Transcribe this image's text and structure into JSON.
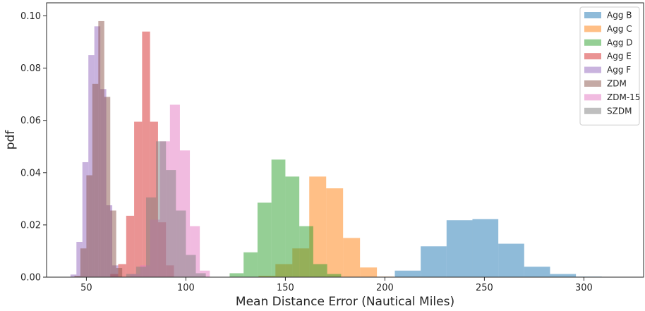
{
  "chart_data": {
    "type": "histogram",
    "xlabel": "Mean Distance Error (Nautical Miles)",
    "ylabel": "pdf",
    "xlim": [
      30,
      330
    ],
    "ylim": [
      0,
      0.105
    ],
    "xticks": [
      50,
      100,
      150,
      200,
      250,
      300
    ],
    "yticks": [
      0.0,
      0.02,
      0.04,
      0.06,
      0.08,
      0.1
    ],
    "xtick_labels": [
      "50",
      "100",
      "150",
      "200",
      "250",
      "300"
    ],
    "ytick_labels": [
      "0.00",
      "0.02",
      "0.04",
      "0.06",
      "0.08",
      "0.10"
    ],
    "legend_position": "top-right",
    "bar_alpha": 0.5,
    "series": [
      {
        "name": "Agg B",
        "color": "#1f77b4",
        "edges": [
          205,
          218,
          231,
          244,
          257,
          270,
          283,
          296,
          309
        ],
        "values": [
          0.0025,
          0.0118,
          0.0218,
          0.0222,
          0.0128,
          0.004,
          0.0012,
          0.0002
        ]
      },
      {
        "name": "Agg C",
        "color": "#ff7f0e",
        "edges": [
          128,
          136.5,
          145,
          153.5,
          162,
          170.5,
          179,
          187.5,
          196,
          204.5
        ],
        "values": [
          0.0001,
          0.0005,
          0.005,
          0.011,
          0.0385,
          0.034,
          0.015,
          0.0037,
          0.0002
        ]
      },
      {
        "name": "Agg D",
        "color": "#2ca02c",
        "edges": [
          122,
          129,
          136,
          143,
          150,
          157,
          164,
          171,
          178
        ],
        "values": [
          0.0015,
          0.0095,
          0.0285,
          0.045,
          0.0385,
          0.0195,
          0.005,
          0.0012
        ]
      },
      {
        "name": "Agg E",
        "color": "#d62728",
        "edges": [
          62,
          66,
          70,
          74,
          78,
          82,
          86,
          90,
          94
        ],
        "values": [
          0.0012,
          0.005,
          0.0235,
          0.0595,
          0.094,
          0.0595,
          0.021,
          0.0045
        ]
      },
      {
        "name": "Agg F",
        "color": "#9467bd",
        "edges": [
          42,
          45,
          48,
          51,
          54,
          57,
          60,
          63,
          66
        ],
        "values": [
          0.001,
          0.0135,
          0.044,
          0.085,
          0.096,
          0.072,
          0.0275,
          0.0045
        ]
      },
      {
        "name": "ZDM",
        "color": "#8c564b",
        "edges": [
          44,
          47,
          50,
          53,
          56,
          59,
          62,
          65,
          68
        ],
        "values": [
          0.0005,
          0.011,
          0.039,
          0.074,
          0.098,
          0.069,
          0.0255,
          0.0035
        ]
      },
      {
        "name": "ZDM-15",
        "color": "#e377c2",
        "edges": [
          72,
          77,
          82,
          87,
          92,
          97,
          102,
          107,
          112
        ],
        "values": [
          0.0012,
          0.0045,
          0.022,
          0.052,
          0.066,
          0.0485,
          0.0195,
          0.0025
        ]
      },
      {
        "name": "SZDM",
        "color": "#7f7f7f",
        "edges": [
          70,
          75,
          80,
          85,
          90,
          95,
          100,
          105,
          110
        ],
        "values": [
          0.0012,
          0.004,
          0.0305,
          0.052,
          0.041,
          0.0255,
          0.0085,
          0.0015
        ]
      }
    ]
  }
}
